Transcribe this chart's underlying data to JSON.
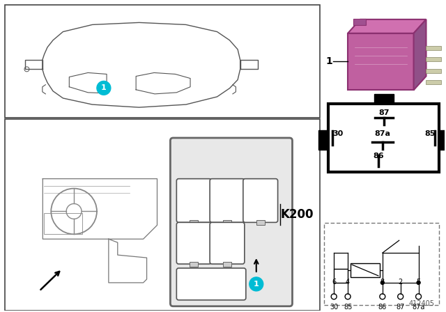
{
  "bg_color": "#ffffff",
  "border_color": "#444444",
  "relay_color": "#C060A0",
  "relay_dark": "#8B3070",
  "relay_top": "#D070B0",
  "relay_right": "#905088",
  "cyan_color": "#00bcd4",
  "pin_labels_top": [
    "87"
  ],
  "pin_labels_mid": [
    "30",
    "87a",
    "85"
  ],
  "pin_labels_bot": [
    "86"
  ],
  "circuit_pins_top": [
    "6",
    "4",
    "8",
    "2",
    "5"
  ],
  "circuit_pins_bot": [
    "30",
    "85",
    "86",
    "87",
    "87a"
  ],
  "part_number": "412405",
  "label_K200": "K200"
}
